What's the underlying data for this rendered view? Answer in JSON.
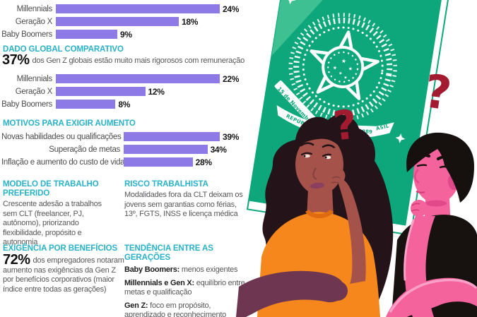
{
  "colors": {
    "bar": "#8d7ae6",
    "heading": "#29b2c5",
    "card-green": "#0da77b",
    "card-green-light": "#3fc092",
    "question-red": "#a21b31"
  },
  "chart_data": [
    {
      "type": "bar",
      "orientation": "horizontal",
      "categories": [
        "Millennials",
        "Geração X",
        "Baby Boomers"
      ],
      "values": [
        24,
        18,
        9
      ],
      "labels": [
        "24%",
        "18%",
        "9%"
      ],
      "max": 24,
      "title": ""
    },
    {
      "type": "bar",
      "orientation": "horizontal",
      "heading": "DADO GLOBAL COMPARATIVO",
      "annotation_value": "37%",
      "annotation": "dos Gen Z globais estão muito mais rigorosos com remuneração",
      "categories": [
        "Millennials",
        "Geração X",
        "Baby Boomers"
      ],
      "values": [
        22,
        12,
        8
      ],
      "labels": [
        "22%",
        "12%",
        "8%"
      ],
      "max": 22
    },
    {
      "type": "bar",
      "orientation": "horizontal",
      "heading": "MOTIVOS PARA EXIGIR AUMENTO",
      "categories": [
        "Novas habilidades ou qualificações",
        "Superação de metas",
        "Inflação e aumento do custo de vida"
      ],
      "values": [
        39,
        34,
        28
      ],
      "labels": [
        "39%",
        "34%",
        "28%"
      ],
      "max": 39
    }
  ],
  "sections": {
    "modelo": {
      "heading": "MODELO DE TRABALHO PREFERIDO",
      "body": "Crescente adesão a trabalhos sem CLT (freelancer, PJ, autônomo), priorizando flexibilidade, propósito e autonomia"
    },
    "risco": {
      "heading": "RISCO TRABALHISTA",
      "body": "Modalidades fora da CLT deixam os jovens sem garantias como férias, 13º, FGTS, INSS e licença médica"
    },
    "exigencia": {
      "heading": "EXIGÊNCIA POR BENEFÍCIOS",
      "lead_value": "72%",
      "body": "dos empregadores notaram aumento nas exigências da Gen Z por benefícios corporativos (maior índice entre todas as gerações)"
    },
    "tendencia": {
      "heading": "TENDÊNCIA ENTRE AS GERAÇÕES",
      "items": [
        {
          "term": "Baby Boomers:",
          "desc": " menos exigentes"
        },
        {
          "term": "Millennials e Gen X:",
          "desc": " equilíbrio entre metas e qualificação"
        },
        {
          "term": "Gen Z:",
          "desc": " foco em propósito, aprendizado e reconhecimento"
        }
      ]
    }
  },
  "illustration": {
    "ribbon_text": "REPÚBLICA FEDERATIVA DO BRASIL",
    "side_band_text": "15 de Novembro",
    "date_text": "de 1889",
    "question_mark": "?"
  }
}
